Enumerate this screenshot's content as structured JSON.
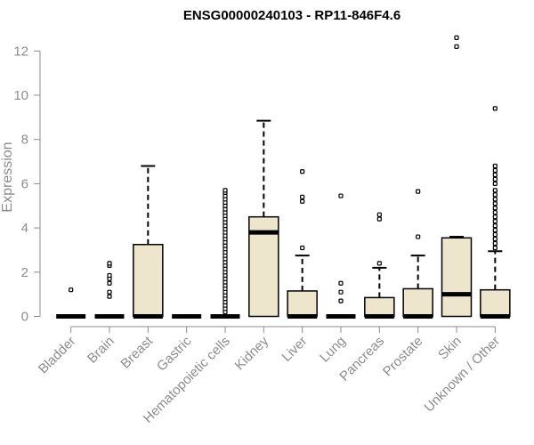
{
  "chart_data": {
    "type": "boxplot",
    "title": "ENSG00000240103 - RP11-846F4.6",
    "xlabel": "",
    "ylabel": "Expression",
    "ylim": [
      0,
      12.6
    ],
    "yticks": [
      0,
      2,
      4,
      6,
      8,
      10,
      12
    ],
    "categories": [
      "Bladder",
      "Brain",
      "Breast",
      "Gastric",
      "Hematopoietic cells",
      "Kidney",
      "Liver",
      "Lung",
      "Pancreas",
      "Prostate",
      "Skin",
      "Unknown / Other"
    ],
    "colors": {
      "box_fill": "#ede6cc",
      "box_stroke": "#000000",
      "axis": "#8c8c8c",
      "tick_label": "#8c8c8c"
    },
    "grid": false,
    "legend": "none",
    "boxes": [
      {
        "category": "Bladder",
        "q1": 0,
        "median": 0,
        "q3": 0,
        "whisker_low": 0,
        "whisker_high": 0,
        "outliers": [
          1.2
        ]
      },
      {
        "category": "Brain",
        "q1": 0,
        "median": 0,
        "q3": 0,
        "whisker_low": 0,
        "whisker_high": 0,
        "outliers": [
          0.9,
          1.1,
          1.5,
          1.7,
          1.85,
          2.3,
          2.4
        ]
      },
      {
        "category": "Breast",
        "q1": 0,
        "median": 0,
        "q3": 3.25,
        "whisker_low": 0,
        "whisker_high": 6.8,
        "outliers": []
      },
      {
        "category": "Gastric",
        "q1": 0,
        "median": 0,
        "q3": 0,
        "whisker_low": 0,
        "whisker_high": 0,
        "outliers": []
      },
      {
        "category": "Hematopoietic cells",
        "q1": 0,
        "median": 0,
        "q3": 0,
        "whisker_low": 0,
        "whisker_high": 0,
        "outliers": [
          0.2,
          0.35,
          0.5,
          0.65,
          0.8,
          0.95,
          1.1,
          1.25,
          1.4,
          1.55,
          1.7,
          1.85,
          2.0,
          2.15,
          2.3,
          2.45,
          2.6,
          2.75,
          2.9,
          3.05,
          3.2,
          3.35,
          3.5,
          3.65,
          3.8,
          3.95,
          4.1,
          4.25,
          4.4,
          4.55,
          4.7,
          4.85,
          5.0,
          5.15,
          5.3,
          5.45,
          5.6,
          5.7
        ]
      },
      {
        "category": "Kidney",
        "q1": 0,
        "median": 3.8,
        "q3": 4.5,
        "whisker_low": 0,
        "whisker_high": 8.85,
        "outliers": []
      },
      {
        "category": "Liver",
        "q1": 0,
        "median": 0,
        "q3": 1.15,
        "whisker_low": 0,
        "whisker_high": 2.75,
        "outliers": [
          3.1,
          5.2,
          5.4,
          6.55
        ]
      },
      {
        "category": "Lung",
        "q1": 0,
        "median": 0,
        "q3": 0,
        "whisker_low": 0,
        "whisker_high": 0,
        "outliers": [
          0.7,
          1.1,
          1.5,
          5.45
        ]
      },
      {
        "category": "Pancreas",
        "q1": 0,
        "median": 0,
        "q3": 0.85,
        "whisker_low": 0,
        "whisker_high": 2.2,
        "outliers": [
          2.4,
          4.4,
          4.6
        ]
      },
      {
        "category": "Prostate",
        "q1": 0,
        "median": 0,
        "q3": 1.25,
        "whisker_low": 0,
        "whisker_high": 2.75,
        "outliers": [
          3.6,
          5.65
        ]
      },
      {
        "category": "Skin",
        "q1": 0,
        "median": 1.0,
        "q3": 3.55,
        "whisker_low": 0,
        "whisker_high": 3.6,
        "outliers": [
          12.2,
          12.6
        ]
      },
      {
        "category": "Unknown / Other",
        "q1": 0,
        "median": 0,
        "q3": 1.2,
        "whisker_low": 0,
        "whisker_high": 2.95,
        "outliers": [
          3.1,
          3.3,
          3.5,
          3.7,
          3.9,
          4.1,
          4.3,
          4.5,
          4.7,
          4.9,
          5.1,
          5.3,
          5.5,
          5.7,
          6.0,
          6.2,
          6.4,
          6.6,
          6.8,
          9.4
        ]
      }
    ]
  }
}
